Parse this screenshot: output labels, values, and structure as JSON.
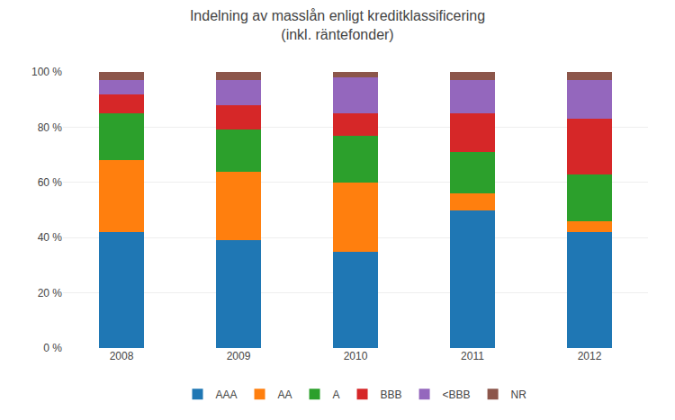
{
  "chart_data": {
    "type": "bar",
    "stacked": true,
    "title": "Indelning av masslån enligt kreditklassificering\n(inkl. räntefonder)",
    "categories": [
      "2008",
      "2009",
      "2010",
      "2011",
      "2012"
    ],
    "series": [
      {
        "name": "AAA",
        "values": [
          42,
          39,
          35,
          50,
          42
        ]
      },
      {
        "name": "AA",
        "values": [
          26,
          25,
          25,
          6,
          4
        ]
      },
      {
        "name": "A",
        "values": [
          17,
          15,
          17,
          15,
          17
        ]
      },
      {
        "name": "BBB",
        "values": [
          7,
          9,
          8,
          14,
          20
        ]
      },
      {
        "name": "<BBB",
        "values": [
          5,
          9,
          13,
          12,
          14
        ]
      },
      {
        "name": "NR",
        "values": [
          3,
          3,
          2,
          3,
          3
        ]
      }
    ],
    "ylim": [
      0,
      100
    ],
    "yticks": [
      {
        "value": 0,
        "label": "0 %"
      },
      {
        "value": 20,
        "label": "20 %"
      },
      {
        "value": 40,
        "label": "40 %"
      },
      {
        "value": 60,
        "label": "60 %"
      },
      {
        "value": 80,
        "label": "80 %"
      },
      {
        "value": 100,
        "label": "100 %"
      }
    ],
    "grid": true,
    "legend": "bottom"
  }
}
